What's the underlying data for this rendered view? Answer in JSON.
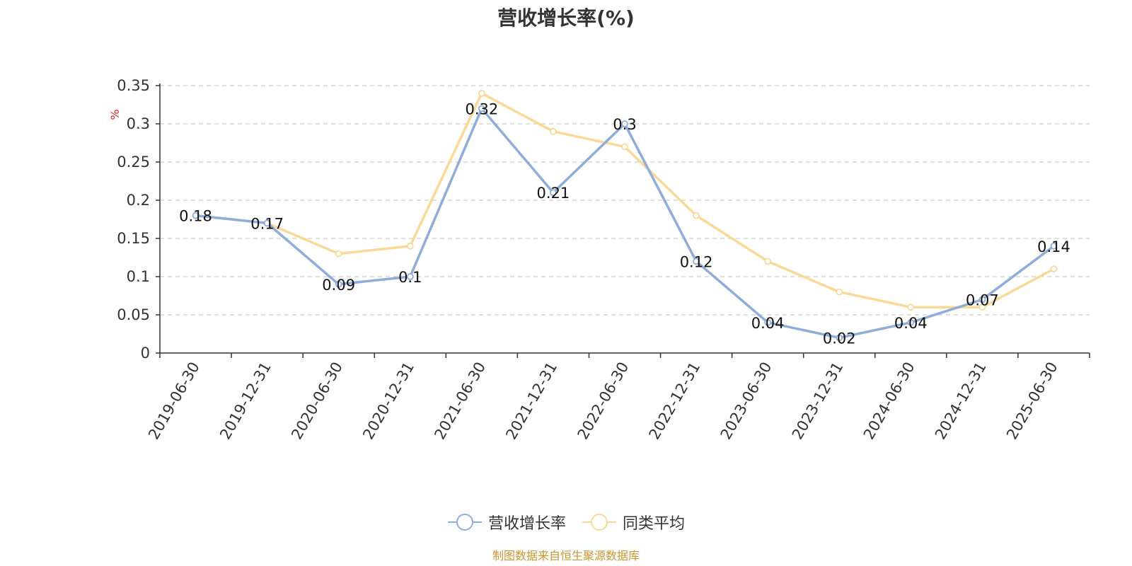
{
  "chart_data": {
    "type": "line",
    "title": "营收增长率(%)",
    "ylabel": "%",
    "xlabel": "",
    "categories": [
      "2019-06-30",
      "2019-12-31",
      "2020-06-30",
      "2020-12-31",
      "2021-06-30",
      "2021-12-31",
      "2022-06-30",
      "2022-12-31",
      "2023-06-30",
      "2023-12-31",
      "2024-06-30",
      "2024-12-31",
      "2025-06-30"
    ],
    "y_ticks": [
      "0",
      "0.05",
      "0.1",
      "0.15",
      "0.2",
      "0.25",
      "0.3",
      "0.35"
    ],
    "ylim": [
      0,
      0.35
    ],
    "grid": true,
    "legend_position": "bottom",
    "series": [
      {
        "name": "营收增长率",
        "color": "#8eadd9",
        "labels_shown": true,
        "values": [
          0.18,
          0.17,
          0.09,
          0.1,
          0.32,
          0.21,
          0.3,
          0.12,
          0.04,
          0.02,
          0.04,
          0.07,
          0.14
        ]
      },
      {
        "name": "同类平均",
        "color": "#fad896",
        "labels_shown": false,
        "values": [
          0.18,
          0.17,
          0.13,
          0.14,
          0.34,
          0.29,
          0.27,
          0.18,
          0.12,
          0.08,
          0.06,
          0.06,
          0.11
        ]
      }
    ]
  },
  "source_note": "制图数据来自恒生聚源数据库"
}
